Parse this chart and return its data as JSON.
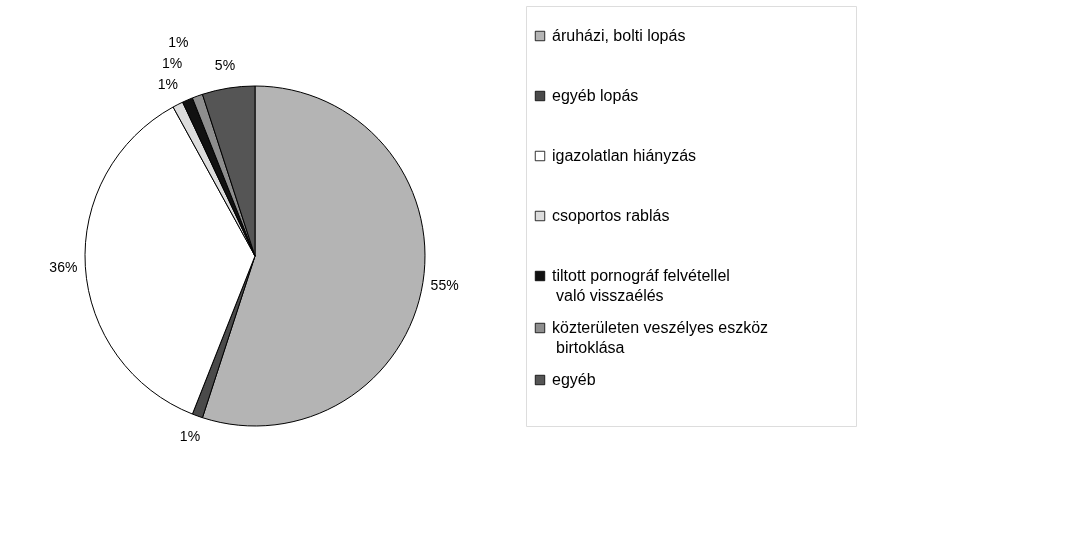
{
  "chart_data": {
    "type": "pie",
    "categories": [
      "áruházi, bolti lopás",
      "egyéb lopás",
      "igazolatlan hiányzás",
      "csoportos rablás",
      "tiltott pornográf felvétellel való visszaélés",
      "közterületen veszélyes eszköz birtoklása",
      "egyéb"
    ],
    "values": [
      55,
      1,
      36,
      1,
      1,
      1,
      5
    ],
    "colors": [
      "#b4b4b4",
      "#4a4a4a",
      "#ffffff",
      "#dcdcdc",
      "#111111",
      "#8e8e8e",
      "#555555"
    ],
    "value_labels": [
      "55%",
      "1%",
      "36%",
      "1%",
      "1%",
      "1%",
      "5%"
    ],
    "legend": "right"
  }
}
